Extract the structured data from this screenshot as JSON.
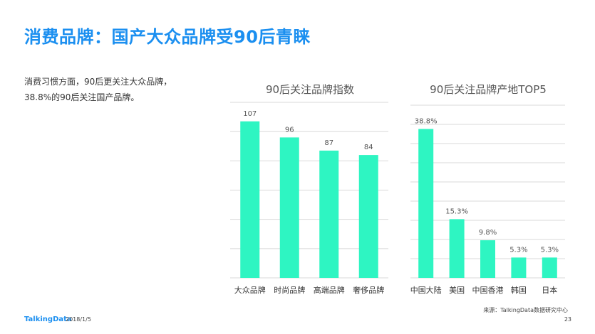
{
  "page": {
    "title": "消费品牌：国产大众品牌受90后青睐",
    "description": "消费习惯方面，90后更关注大众品牌，38.8%的90后关注国产品牌。",
    "source": "来源：TalkingData数据研究中心",
    "logo": "TalkingData",
    "date": "2018/1/5",
    "page_number": "23"
  },
  "colors": {
    "bar": "#2ef5c2",
    "title": "#1b8ff0",
    "grid": "#d8d8d8"
  },
  "chart_data": [
    {
      "type": "bar",
      "title": "90后关注品牌指数",
      "categories": [
        "大众品牌",
        "时尚品牌",
        "高端品牌",
        "奢侈品牌"
      ],
      "values": [
        107,
        96,
        87,
        84
      ],
      "value_labels": [
        "107",
        "96",
        "87",
        "84"
      ],
      "ylim": [
        0,
        120
      ],
      "grid": true
    },
    {
      "type": "bar",
      "title": "90后关注品牌产地TOP5",
      "categories": [
        "中国大陆",
        "美国",
        "中国香港",
        "韩国",
        "日本"
      ],
      "values": [
        38.8,
        15.3,
        9.8,
        5.3,
        5.3
      ],
      "value_labels": [
        "38.8%",
        "15.3%",
        "9.8%",
        "5.3%",
        "5.3%"
      ],
      "ylim": [
        0,
        45
      ],
      "grid": true
    }
  ]
}
